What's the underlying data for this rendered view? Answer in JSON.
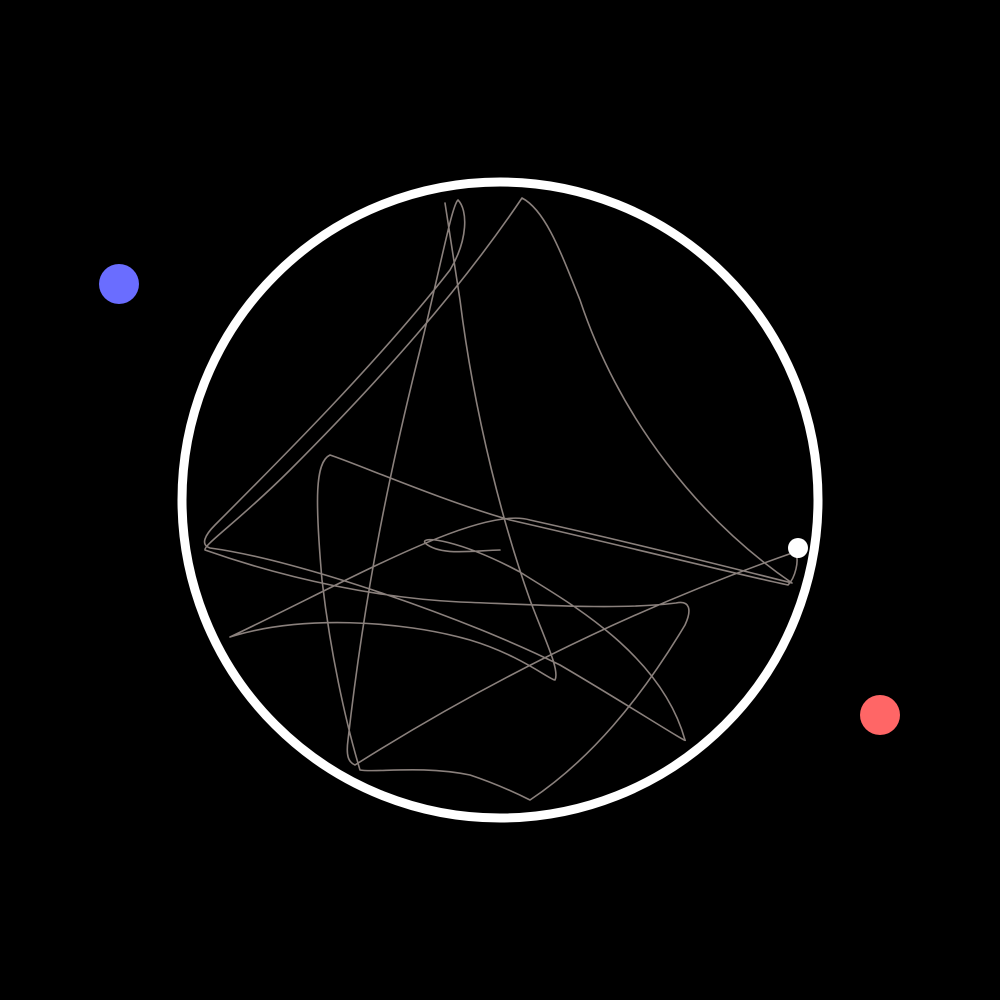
{
  "scene": {
    "background_color": "#000000",
    "boundary_color": "#ffffff",
    "trail_color": "#8a807c",
    "ball_color": "#ffffff",
    "attractors": [
      {
        "name": "blue-attractor",
        "color": "#6a6dff"
      },
      {
        "name": "red-attractor",
        "color": "#ff6666"
      }
    ]
  }
}
